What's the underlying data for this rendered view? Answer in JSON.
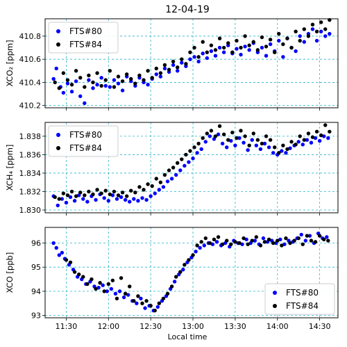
{
  "title": "12-04-19",
  "xlabel": "Local time",
  "colors": {
    "FTS#80": "#0000ff",
    "FTS#84": "#000000",
    "grid": "#26b4c8"
  },
  "chart_data": [
    {
      "type": "scatter",
      "ylabel": "XCO₂ [ppm]",
      "ylim": [
        410.18,
        410.95
      ],
      "yticks": [
        410.2,
        410.4,
        410.6,
        410.8
      ],
      "ytick_labels": [
        "410.2",
        "410.4",
        "410.6",
        "410.8"
      ],
      "legend": "top-left",
      "grid": true,
      "series": [
        {
          "name": "FTS#80",
          "color": "#0000ff",
          "x": [
            "11:21",
            "11:23",
            "11:26",
            "11:28",
            "11:31",
            "11:34",
            "11:37",
            "11:40",
            "11:43",
            "11:46",
            "11:49",
            "11:52",
            "11:55",
            "11:58",
            "12:01",
            "12:04",
            "12:07",
            "12:10",
            "12:13",
            "12:16",
            "12:19",
            "12:22",
            "12:25",
            "12:28",
            "12:31",
            "12:34",
            "12:37",
            "12:40",
            "12:43",
            "12:46",
            "12:49",
            "12:52",
            "12:55",
            "12:58",
            "13:01",
            "13:04",
            "13:07",
            "13:10",
            "13:13",
            "13:16",
            "13:19",
            "13:22",
            "13:25",
            "13:28",
            "13:31",
            "13:34",
            "13:37",
            "13:40",
            "13:43",
            "13:46",
            "13:49",
            "13:52",
            "13:55",
            "13:58",
            "14:01",
            "14:04",
            "14:07",
            "14:10",
            "14:13",
            "14:16",
            "14:19",
            "14:22",
            "14:25",
            "14:28",
            "14:31",
            "14:34",
            "14:37"
          ],
          "y": [
            410.43,
            410.52,
            410.36,
            410.31,
            410.39,
            410.32,
            410.41,
            410.28,
            410.22,
            410.42,
            410.35,
            410.38,
            410.44,
            410.37,
            410.36,
            410.42,
            410.39,
            410.33,
            410.45,
            410.41,
            410.37,
            410.44,
            410.4,
            410.38,
            410.43,
            410.47,
            410.45,
            410.52,
            410.49,
            410.55,
            410.5,
            410.57,
            410.54,
            410.6,
            410.62,
            410.58,
            410.65,
            410.61,
            410.67,
            410.63,
            410.7,
            410.66,
            410.72,
            410.65,
            410.69,
            410.64,
            410.71,
            410.68,
            410.74,
            410.66,
            410.7,
            410.63,
            410.73,
            410.67,
            410.76,
            410.62,
            410.78,
            410.7,
            410.67,
            410.8,
            410.75,
            410.82,
            410.86,
            410.76,
            410.84,
            410.8,
            410.82
          ]
        },
        {
          "name": "FTS#84",
          "color": "#000000",
          "x": [
            "11:22",
            "11:25",
            "11:28",
            "11:31",
            "11:34",
            "11:37",
            "11:40",
            "11:43",
            "11:46",
            "11:49",
            "11:52",
            "11:55",
            "11:58",
            "12:01",
            "12:04",
            "12:07",
            "12:10",
            "12:13",
            "12:16",
            "12:19",
            "12:22",
            "12:25",
            "12:28",
            "12:31",
            "12:34",
            "12:37",
            "12:40",
            "12:43",
            "12:46",
            "12:49",
            "12:52",
            "12:55",
            "12:58",
            "13:01",
            "13:04",
            "13:07",
            "13:10",
            "13:13",
            "13:16",
            "13:19",
            "13:22",
            "13:25",
            "13:28",
            "13:31",
            "13:34",
            "13:37",
            "13:40",
            "13:43",
            "13:46",
            "13:49",
            "13:52",
            "13:55",
            "13:58",
            "14:01",
            "14:04",
            "14:07",
            "14:10",
            "14:13",
            "14:16",
            "14:19",
            "14:22",
            "14:25",
            "14:28",
            "14:31",
            "14:34",
            "14:37"
          ],
          "y": [
            410.4,
            410.35,
            410.48,
            410.42,
            410.38,
            410.5,
            410.44,
            410.36,
            410.46,
            410.4,
            410.48,
            410.37,
            410.42,
            410.5,
            410.36,
            410.45,
            410.41,
            410.47,
            410.43,
            410.39,
            410.46,
            410.42,
            410.5,
            410.44,
            410.52,
            410.48,
            410.55,
            410.51,
            410.58,
            410.53,
            410.6,
            410.56,
            410.66,
            410.7,
            410.62,
            410.75,
            410.66,
            410.72,
            410.68,
            410.78,
            410.7,
            410.74,
            410.66,
            410.76,
            410.7,
            410.8,
            410.72,
            410.75,
            410.68,
            410.79,
            410.71,
            410.77,
            410.66,
            410.82,
            410.73,
            410.78,
            410.7,
            410.84,
            410.76,
            410.86,
            410.8,
            410.9,
            410.84,
            410.92,
            410.86,
            410.94
          ]
        }
      ]
    },
    {
      "type": "scatter",
      "ylabel": "XCH₄ [ppm]",
      "ylim": [
        1.8297,
        1.8395
      ],
      "yticks": [
        1.83,
        1.832,
        1.834,
        1.836,
        1.838
      ],
      "ytick_labels": [
        "1.830",
        "1.832",
        "1.834",
        "1.836",
        "1.838"
      ],
      "legend": "top-left",
      "grid": true,
      "series": [
        {
          "name": "FTS#80",
          "color": "#0000ff",
          "x": [
            "11:21",
            "11:24",
            "11:27",
            "11:30",
            "11:33",
            "11:36",
            "11:39",
            "11:42",
            "11:45",
            "11:48",
            "11:51",
            "11:54",
            "11:57",
            "12:00",
            "12:03",
            "12:06",
            "12:09",
            "12:12",
            "12:15",
            "12:18",
            "12:21",
            "12:24",
            "12:27",
            "12:30",
            "12:33",
            "12:36",
            "12:39",
            "12:42",
            "12:45",
            "12:48",
            "12:51",
            "12:54",
            "12:57",
            "13:00",
            "13:03",
            "13:06",
            "13:09",
            "13:12",
            "13:15",
            "13:18",
            "13:21",
            "13:24",
            "13:27",
            "13:30",
            "13:33",
            "13:36",
            "13:39",
            "13:42",
            "13:45",
            "13:48",
            "13:51",
            "13:54",
            "13:57",
            "14:00",
            "14:03",
            "14:06",
            "14:09",
            "14:12",
            "14:15",
            "14:18",
            "14:21",
            "14:24",
            "14:27",
            "14:30",
            "14:33",
            "14:36"
          ],
          "y": [
            1.8315,
            1.8305,
            1.8312,
            1.8308,
            1.8314,
            1.831,
            1.8316,
            1.8312,
            1.8309,
            1.8315,
            1.8311,
            1.8317,
            1.8313,
            1.831,
            1.8316,
            1.8312,
            1.8314,
            1.8311,
            1.8309,
            1.8312,
            1.831,
            1.8313,
            1.8311,
            1.8315,
            1.8318,
            1.8322,
            1.8325,
            1.8331,
            1.8334,
            1.8338,
            1.8343,
            1.8348,
            1.8352,
            1.8356,
            1.8362,
            1.8366,
            1.8374,
            1.838,
            1.8377,
            1.8382,
            1.8372,
            1.8368,
            1.8375,
            1.837,
            1.8378,
            1.8373,
            1.8365,
            1.8376,
            1.837,
            1.8366,
            1.8372,
            1.8368,
            1.8362,
            1.836,
            1.8364,
            1.8362,
            1.8367,
            1.837,
            1.8374,
            1.8371,
            1.8376,
            1.8373,
            1.8378,
            1.8375,
            1.838,
            1.8378
          ]
        },
        {
          "name": "FTS#84",
          "color": "#000000",
          "x": [
            "11:22",
            "11:25",
            "11:28",
            "11:31",
            "11:34",
            "11:37",
            "11:40",
            "11:43",
            "11:46",
            "11:49",
            "11:52",
            "11:55",
            "11:58",
            "12:01",
            "12:04",
            "12:07",
            "12:10",
            "12:13",
            "12:16",
            "12:19",
            "12:22",
            "12:25",
            "12:28",
            "12:31",
            "12:34",
            "12:37",
            "12:40",
            "12:43",
            "12:46",
            "12:49",
            "12:52",
            "12:55",
            "12:58",
            "13:01",
            "13:04",
            "13:07",
            "13:10",
            "13:13",
            "13:16",
            "13:19",
            "13:22",
            "13:25",
            "13:28",
            "13:31",
            "13:34",
            "13:37",
            "13:40",
            "13:43",
            "13:46",
            "13:49",
            "13:52",
            "13:55",
            "13:58",
            "14:01",
            "14:04",
            "14:07",
            "14:10",
            "14:13",
            "14:16",
            "14:19",
            "14:22",
            "14:25",
            "14:28",
            "14:31",
            "14:34",
            "14:37"
          ],
          "y": [
            1.8314,
            1.8312,
            1.8318,
            1.8316,
            1.832,
            1.8315,
            1.8319,
            1.8316,
            1.832,
            1.8317,
            1.8322,
            1.8318,
            1.8321,
            1.8317,
            1.832,
            1.8316,
            1.8319,
            1.8315,
            1.8321,
            1.8319,
            1.8325,
            1.8322,
            1.8328,
            1.8326,
            1.8334,
            1.833,
            1.8338,
            1.8343,
            1.8346,
            1.8351,
            1.8355,
            1.836,
            1.8364,
            1.8368,
            1.8372,
            1.8378,
            1.8383,
            1.8386,
            1.838,
            1.8391,
            1.8382,
            1.8376,
            1.8384,
            1.8378,
            1.8386,
            1.838,
            1.837,
            1.8383,
            1.8376,
            1.8372,
            1.838,
            1.8376,
            1.8368,
            1.8362,
            1.837,
            1.8366,
            1.8374,
            1.8371,
            1.838,
            1.8376,
            1.8383,
            1.8379,
            1.8385,
            1.8381,
            1.8392,
            1.8385
          ]
        }
      ]
    },
    {
      "type": "scatter",
      "ylabel": "XCO [ppb]",
      "ylim": [
        92.9,
        96.65
      ],
      "yticks": [
        93,
        94,
        95,
        96
      ],
      "ytick_labels": [
        "93",
        "94",
        "95",
        "96"
      ],
      "legend": "bottom-right",
      "grid": true,
      "series": [
        {
          "name": "FTS#80",
          "color": "#0000ff",
          "x": [
            "11:21",
            "11:23",
            "11:25",
            "11:27",
            "11:29",
            "11:32",
            "11:35",
            "11:38",
            "11:41",
            "11:44",
            "11:47",
            "11:50",
            "11:53",
            "11:56",
            "11:59",
            "12:02",
            "12:05",
            "12:08",
            "12:11",
            "12:14",
            "12:17",
            "12:20",
            "12:23",
            "12:26",
            "12:29",
            "12:32",
            "12:35",
            "12:38",
            "12:41",
            "12:44",
            "12:47",
            "12:50",
            "12:53",
            "12:56",
            "12:59",
            "13:02",
            "13:05",
            "13:08",
            "13:11",
            "13:14",
            "13:17",
            "13:20",
            "13:23",
            "13:26",
            "13:29",
            "13:32",
            "13:35",
            "13:38",
            "13:41",
            "13:44",
            "13:47",
            "13:50",
            "13:53",
            "13:56",
            "13:59",
            "14:02",
            "14:05",
            "14:08",
            "14:11",
            "14:14",
            "14:17",
            "14:20",
            "14:23",
            "14:26",
            "14:29",
            "14:32",
            "14:35"
          ],
          "y": [
            96.0,
            95.8,
            95.5,
            95.6,
            95.35,
            95.1,
            94.9,
            94.6,
            94.5,
            94.3,
            94.4,
            94.2,
            94.15,
            94.25,
            94.0,
            94.1,
            93.9,
            94.0,
            93.75,
            93.85,
            93.6,
            93.5,
            93.7,
            93.3,
            93.4,
            93.2,
            93.35,
            93.6,
            93.8,
            94.1,
            94.4,
            94.7,
            94.9,
            95.2,
            95.4,
            95.65,
            95.8,
            95.9,
            96.0,
            95.95,
            96.05,
            95.9,
            96.0,
            95.85,
            96.1,
            96.0,
            95.95,
            96.15,
            96.0,
            96.1,
            95.95,
            96.2,
            96.05,
            96.1,
            96.0,
            96.15,
            95.95,
            96.1,
            96.05,
            96.2,
            96.35,
            96.1,
            96.3,
            96.0,
            96.4,
            96.2,
            96.25
          ]
        },
        {
          "name": "FTS#84",
          "color": "#000000",
          "x": [
            "11:30",
            "11:33",
            "11:36",
            "11:39",
            "11:42",
            "11:45",
            "11:48",
            "11:51",
            "11:54",
            "11:57",
            "12:00",
            "12:03",
            "12:06",
            "12:09",
            "12:12",
            "12:15",
            "12:18",
            "12:21",
            "12:24",
            "12:27",
            "12:30",
            "12:33",
            "12:36",
            "12:39",
            "12:42",
            "12:45",
            "12:48",
            "12:51",
            "12:54",
            "12:57",
            "13:00",
            "13:03",
            "13:06",
            "13:09",
            "13:12",
            "13:15",
            "13:18",
            "13:21",
            "13:24",
            "13:27",
            "13:30",
            "13:33",
            "13:36",
            "13:39",
            "13:42",
            "13:45",
            "13:48",
            "13:51",
            "13:54",
            "13:57",
            "14:00",
            "14:03",
            "14:06",
            "14:09",
            "14:12",
            "14:15",
            "14:18",
            "14:21",
            "14:24",
            "14:27",
            "14:30",
            "14:33",
            "14:36"
          ],
          "y": [
            95.3,
            95.2,
            94.8,
            94.7,
            94.6,
            94.3,
            94.5,
            94.1,
            94.35,
            94.0,
            94.3,
            94.45,
            93.7,
            94.55,
            93.9,
            94.2,
            93.6,
            93.8,
            93.5,
            93.6,
            93.4,
            93.2,
            93.5,
            93.7,
            93.9,
            94.2,
            94.6,
            94.8,
            95.1,
            95.3,
            95.5,
            95.9,
            96.05,
            96.2,
            96.0,
            96.15,
            96.25,
            95.95,
            96.1,
            95.95,
            96.05,
            96.0,
            96.2,
            95.95,
            96.1,
            96.25,
            95.9,
            96.05,
            96.15,
            96.0,
            96.1,
            95.9,
            96.2,
            96.0,
            96.1,
            96.2,
            95.95,
            96.3,
            96.1,
            96.05,
            96.3,
            96.15,
            96.1
          ]
        }
      ]
    }
  ],
  "xticks": [
    "11:30",
    "12:00",
    "12:30",
    "13:00",
    "13:30",
    "14:00",
    "14:30"
  ]
}
